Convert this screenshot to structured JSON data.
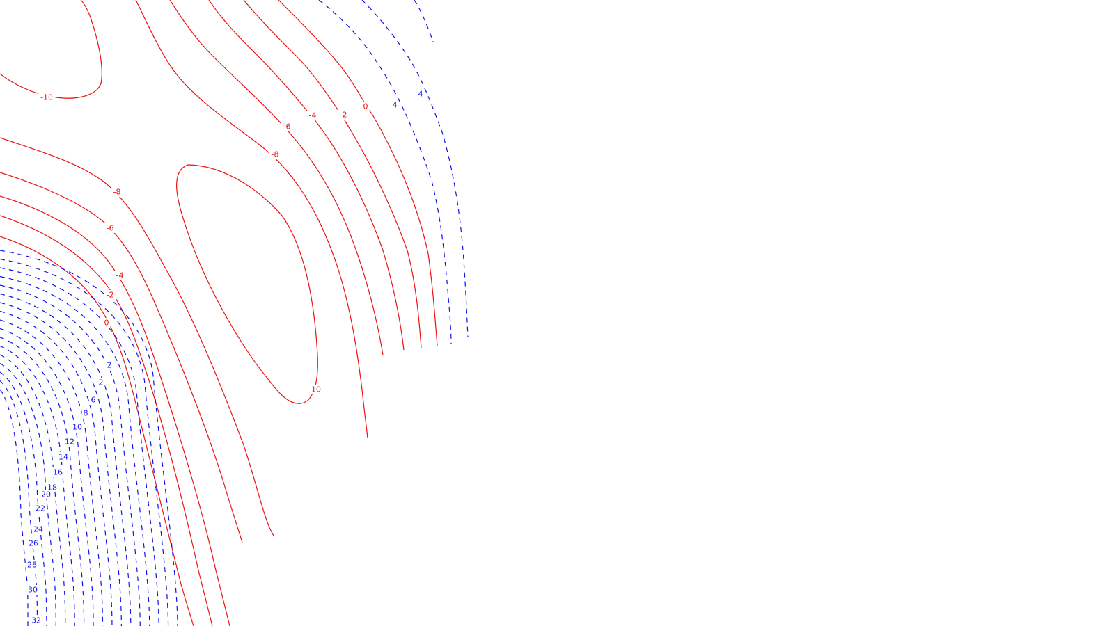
{
  "chart_data": {
    "type": "contour",
    "title": "",
    "xlabel": "",
    "ylabel": "",
    "negative_color": "#ee1111",
    "positive_color": "#1111ee",
    "negative_linestyle": "solid",
    "positive_linestyle": "dashed",
    "levels": [
      -10,
      -8,
      -6,
      -4,
      -2,
      0,
      2,
      4,
      6,
      8,
      10,
      12,
      14,
      16,
      18,
      20,
      22,
      24,
      26,
      28,
      30,
      32
    ],
    "labels": [
      {
        "text": "-10",
        "sign": "neg"
      },
      {
        "text": "-10",
        "sign": "neg"
      },
      {
        "text": "-8",
        "sign": "neg"
      },
      {
        "text": "-8",
        "sign": "neg"
      },
      {
        "text": "-6",
        "sign": "neg"
      },
      {
        "text": "-6",
        "sign": "neg"
      },
      {
        "text": "-4",
        "sign": "neg"
      },
      {
        "text": "-4",
        "sign": "neg"
      },
      {
        "text": "-2",
        "sign": "neg"
      },
      {
        "text": "-2",
        "sign": "neg"
      },
      {
        "text": "0",
        "sign": "neg"
      },
      {
        "text": "0",
        "sign": "neg"
      },
      {
        "text": "2",
        "sign": "pos"
      },
      {
        "text": "4",
        "sign": "pos"
      },
      {
        "text": "2",
        "sign": "pos"
      },
      {
        "text": "4",
        "sign": "pos"
      },
      {
        "text": "6",
        "sign": "pos"
      },
      {
        "text": "8",
        "sign": "pos"
      },
      {
        "text": "10",
        "sign": "pos"
      },
      {
        "text": "12",
        "sign": "pos"
      },
      {
        "text": "14",
        "sign": "pos"
      },
      {
        "text": "16",
        "sign": "pos"
      },
      {
        "text": "18",
        "sign": "pos"
      },
      {
        "text": "20",
        "sign": "pos"
      },
      {
        "text": "22",
        "sign": "pos"
      },
      {
        "text": "24",
        "sign": "pos"
      },
      {
        "text": "26",
        "sign": "pos"
      },
      {
        "text": "28",
        "sign": "pos"
      },
      {
        "text": "30",
        "sign": "pos"
      },
      {
        "text": "32",
        "sign": "pos"
      }
    ]
  }
}
